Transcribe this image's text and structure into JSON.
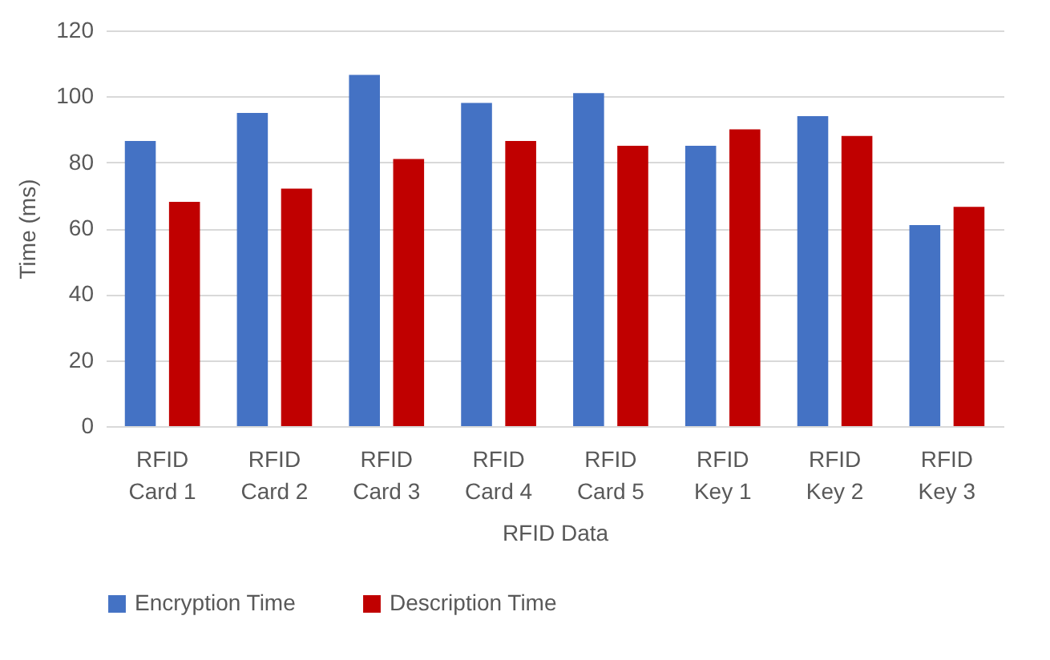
{
  "chart_data": {
    "type": "bar",
    "xlabel": "RFID Data",
    "ylabel": "Time (ms)",
    "categories": [
      "RFID Card  1",
      "RFID Card  2",
      "RFID Card 3",
      "RFID Card  4",
      "RFID Card  5",
      "RFID Key 1",
      "RFID Key  2",
      "RFID Key 3"
    ],
    "series": [
      {
        "name": "Encryption Time",
        "color": "#4472c4",
        "values": [
          86.5,
          95,
          106.5,
          98,
          101,
          85,
          94,
          61
        ]
      },
      {
        "name": "Description Time",
        "color": "#c00000",
        "values": [
          68,
          72,
          81,
          86.5,
          85,
          90,
          88,
          66.5
        ]
      }
    ],
    "ylim": [
      0,
      120
    ],
    "yticks": [
      0,
      20,
      40,
      60,
      80,
      100,
      120
    ],
    "grid": "y",
    "legend": "bottom"
  }
}
